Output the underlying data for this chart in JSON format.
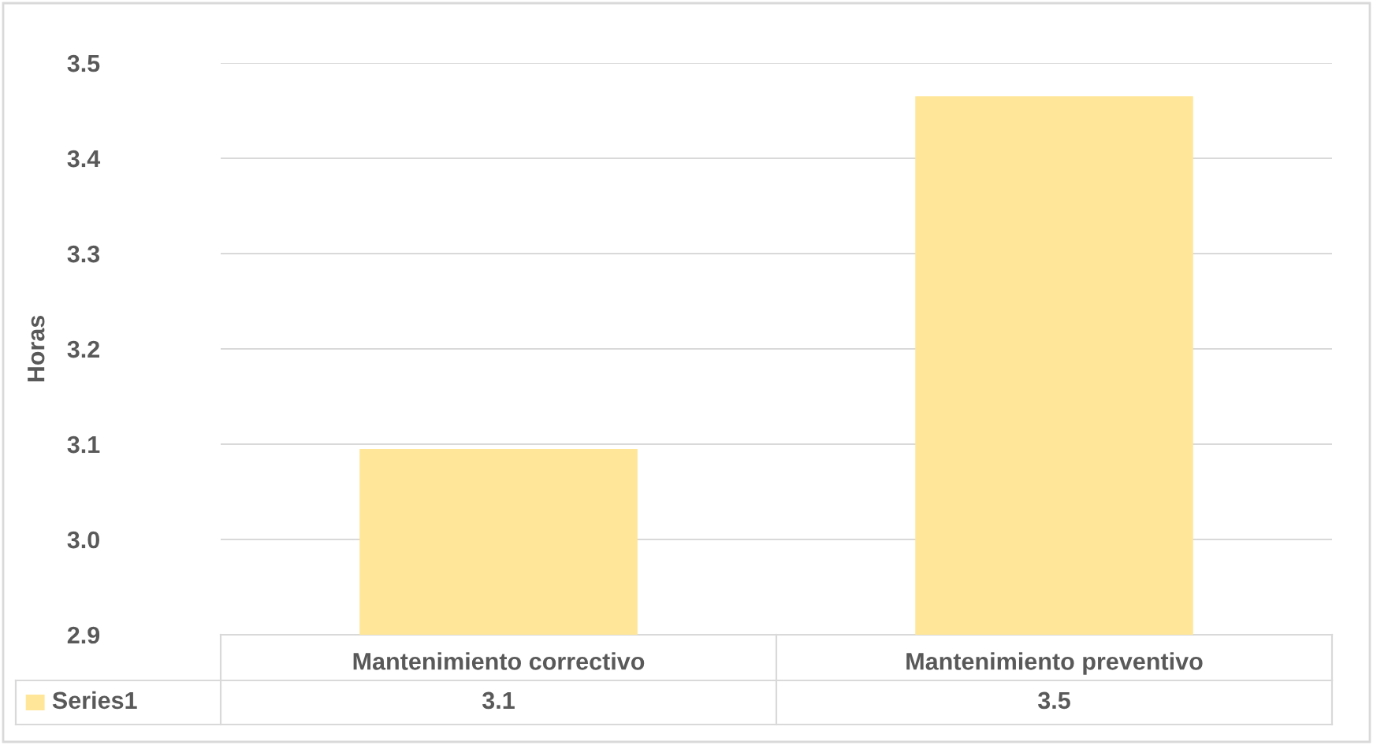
{
  "chart_data": {
    "type": "bar",
    "ylabel": "Horas",
    "categories": [
      "Mantenimiento correctivo",
      "Mantenimiento preventivo"
    ],
    "series": [
      {
        "name": "Series1",
        "color": "#ffe699",
        "values": [
          3.095,
          3.465
        ],
        "value_labels": [
          "3.1",
          "3.5"
        ]
      }
    ],
    "ylim": [
      2.9,
      3.5
    ],
    "yticks": [
      {
        "value": 2.9,
        "label": "2.9"
      },
      {
        "value": 3.0,
        "label": "3.0"
      },
      {
        "value": 3.1,
        "label": "3.1"
      },
      {
        "value": 3.2,
        "label": "3.2"
      },
      {
        "value": 3.3,
        "label": "3.3"
      },
      {
        "value": 3.4,
        "label": "3.4"
      },
      {
        "value": 3.5,
        "label": "3.5"
      }
    ],
    "grid": "y",
    "legend": "bottom"
  }
}
